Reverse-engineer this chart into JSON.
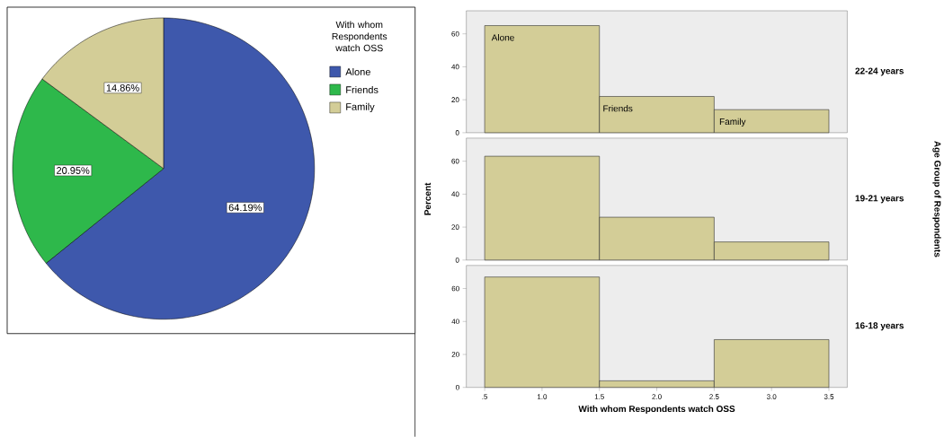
{
  "chart_data": [
    {
      "type": "pie",
      "categories": [
        "Alone",
        "Friends",
        "Family"
      ],
      "values": [
        64.19,
        20.95,
        14.86
      ],
      "colors": [
        "#3e58ac",
        "#2eb84b",
        "#d3cd97"
      ],
      "value_labels": [
        "64.19%",
        "20.95%",
        "14.86%"
      ],
      "legend_title": "With whom Respondents watch OSS",
      "legend": "top right"
    },
    {
      "type": "histogram",
      "y2label": "22-24 years",
      "bins": [
        0.5,
        1.5,
        2.5,
        3.5
      ],
      "values": [
        65,
        22,
        14
      ],
      "color": "#d3cd97",
      "xlim": [
        0.34,
        3.66
      ],
      "ylim": [
        0,
        74
      ],
      "yticks": [
        0,
        20,
        40,
        60
      ],
      "tick_labels": "y",
      "annotations": [
        "Alone",
        "Friends",
        "Family"
      ]
    },
    {
      "type": "histogram",
      "y2label": "19-21 years",
      "ylabel": "Percent",
      "annotations": [
        "Age Group of Respondents"
      ],
      "bins": [
        0.5,
        1.5,
        2.5,
        3.5
      ],
      "values": [
        63,
        26,
        11
      ],
      "color": "#d3cd97",
      "xlim": [
        0.34,
        3.66
      ],
      "ylim": [
        0,
        74
      ],
      "yticks": [
        0,
        20,
        40,
        60
      ],
      "tick_labels": "y"
    },
    {
      "type": "histogram",
      "y2label": "16-18 years",
      "xlabel": "With whom Respondents watch OSS",
      "bins": [
        0.5,
        1.5,
        2.5,
        3.5
      ],
      "values": [
        67,
        4,
        29
      ],
      "color": "#d3cd97",
      "xlim": [
        0.34,
        3.66
      ],
      "ylim": [
        0,
        74
      ],
      "xticks": [
        {
          "value": 0.5,
          "label": ".5"
        },
        {
          "value": 1.0,
          "label": "1.0"
        },
        {
          "value": 1.5,
          "label": "1.5"
        },
        {
          "value": 2.0,
          "label": "2.0"
        },
        {
          "value": 2.5,
          "label": "2.5"
        },
        {
          "value": 3.0,
          "label": "3.0"
        },
        {
          "value": 3.5,
          "label": "3.5"
        }
      ],
      "yticks": [
        0,
        20,
        40,
        60
      ]
    }
  ]
}
